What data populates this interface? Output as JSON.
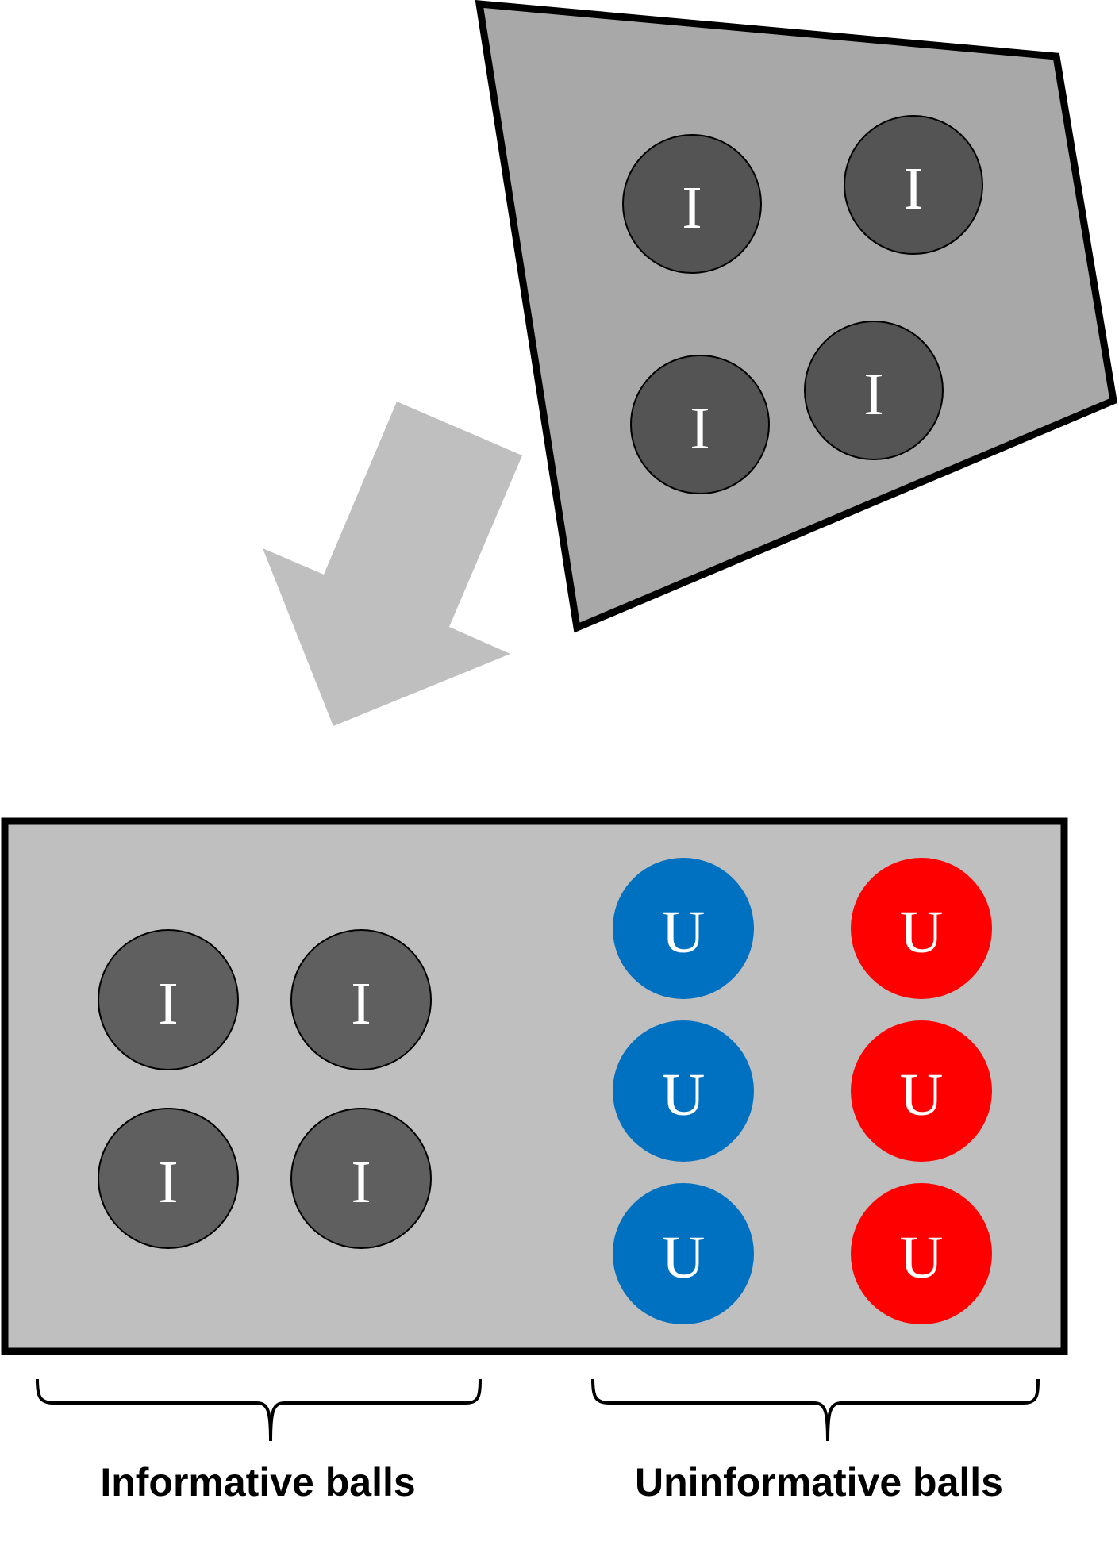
{
  "colors": {
    "background": "#ffffff",
    "source_container_fill": "#a8a8a8",
    "target_container_fill": "#bfbfbf",
    "arrow_fill": "#bfbfbf",
    "outline": "#000000",
    "informative_ball_source": "#545454",
    "informative_ball_target": "#5f5f5f",
    "uninformative_ball_blue": "#0070c0",
    "uninformative_ball_red": "#ff0000",
    "ball_letter": "#ffffff"
  },
  "source_container": {
    "balls": [
      {
        "letter": "I",
        "kind": "informative"
      },
      {
        "letter": "I",
        "kind": "informative"
      },
      {
        "letter": "I",
        "kind": "informative"
      },
      {
        "letter": "I",
        "kind": "informative"
      }
    ]
  },
  "target_container": {
    "informative_balls": [
      {
        "letter": "I"
      },
      {
        "letter": "I"
      },
      {
        "letter": "I"
      },
      {
        "letter": "I"
      }
    ],
    "uninformative_balls": [
      {
        "letter": "U",
        "color": "blue"
      },
      {
        "letter": "U",
        "color": "blue"
      },
      {
        "letter": "U",
        "color": "blue"
      },
      {
        "letter": "U",
        "color": "red"
      },
      {
        "letter": "U",
        "color": "red"
      },
      {
        "letter": "U",
        "color": "red"
      }
    ]
  },
  "labels": {
    "informative": "Informative balls",
    "uninformative": "Uninformative balls"
  }
}
